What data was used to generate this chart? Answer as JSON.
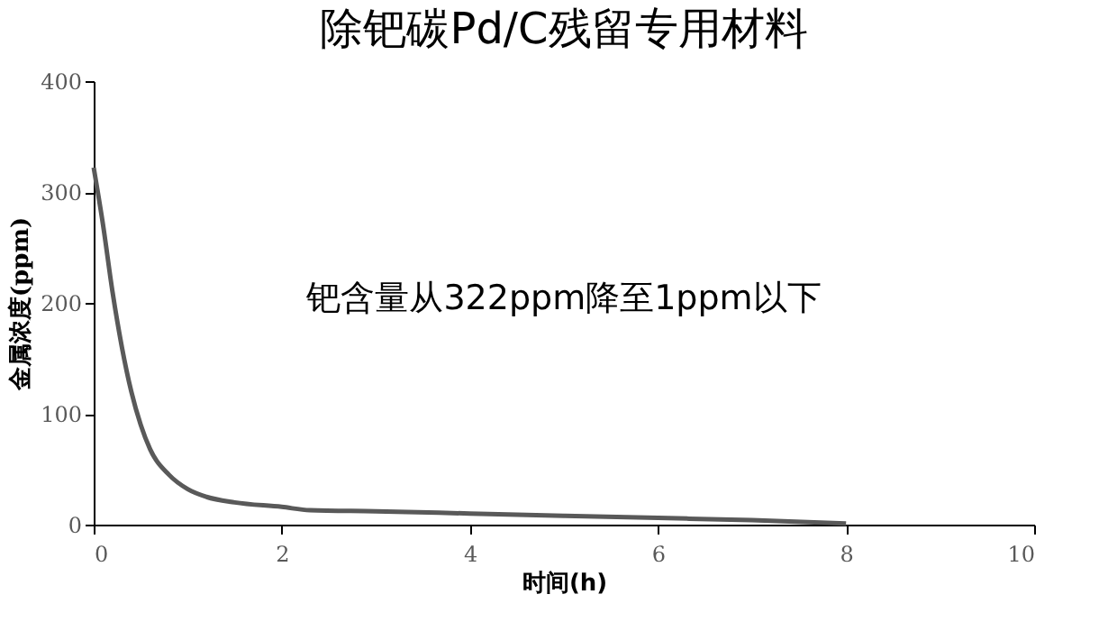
{
  "chart_data": {
    "type": "line",
    "title": "除钯碳Pd/C残留专用材料",
    "xlabel": "时间(h)",
    "ylabel": "金属浓度(ppm)",
    "annotations": [
      "钯含量从322ppm降至1ppm以下"
    ],
    "series": [
      {
        "color": "#595959",
        "x": [
          0,
          0.1,
          0.2,
          0.3,
          0.4,
          0.5,
          0.6,
          0.8,
          1,
          1.2,
          1.5,
          2,
          2.3,
          3,
          4,
          5,
          6,
          7,
          8
        ],
        "values": [
          322,
          270,
          210,
          160,
          120,
          90,
          68,
          45,
          32,
          25,
          20,
          16,
          13,
          12,
          10,
          8,
          6,
          4,
          1
        ]
      }
    ],
    "xlim": [
      0,
      10
    ],
    "xticks": [
      0,
      2,
      4,
      6,
      8,
      10
    ],
    "ylim": [
      0,
      400
    ],
    "yticks": [
      0,
      100,
      200,
      300,
      400
    ],
    "grid": false,
    "marker": "none",
    "line_style": "solid"
  }
}
